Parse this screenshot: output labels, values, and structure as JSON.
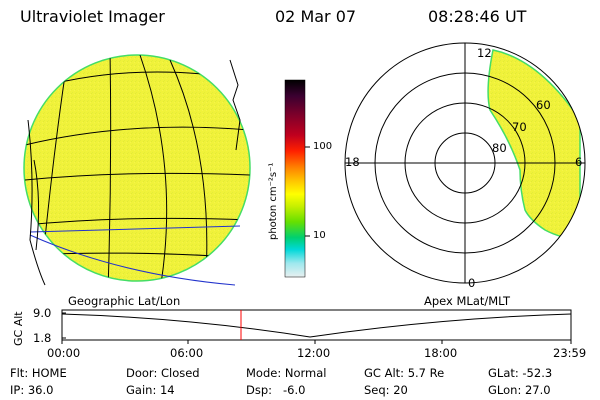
{
  "header": {
    "instrument": "Ultraviolet Imager",
    "date": "02 Mar 07",
    "time": "08:28:46 UT"
  },
  "colorbar": {
    "unit_label": "photon cm⁻²s⁻¹",
    "ticks": [
      "100",
      "10"
    ],
    "colors": [
      "#000000",
      "#3a0030",
      "#80002a",
      "#c0001e",
      "#ff2000",
      "#ff8800",
      "#ffcc00",
      "#ffff00",
      "#c8f000",
      "#66e000",
      "#00d070",
      "#00d8d8",
      "#9ee8ee",
      "#e8f0f0"
    ]
  },
  "left_map": {
    "label": "Geographic Lat/Lon",
    "fill_color": "#f0f23a",
    "edge_color": "#44dd66"
  },
  "polar_map": {
    "label": "Apex MLat/MLT",
    "mlt_labels": {
      "top": "12",
      "left": "18",
      "right": "6",
      "bottom": "0"
    },
    "lat_labels": [
      "60",
      "70",
      "80"
    ]
  },
  "timeline": {
    "ylabel": "GC Alt",
    "y_ticks": [
      "9.0",
      "1.8"
    ],
    "x_ticks": [
      "00:00",
      "06:00",
      "12:00",
      "18:00",
      "23:59"
    ],
    "marker_color": "#ff0000"
  },
  "status": {
    "flt": "Flt: HOME",
    "ip": "IP: 36.0",
    "door": "Door: Closed",
    "gain": "Gain: 14",
    "mode": "Mode: Normal",
    "dsp": "Dsp:   -6.0",
    "gc_alt": "GC Alt: 5.7 Re",
    "seq": "Seq: 20",
    "glat": "GLat: -52.3",
    "glon": "GLon: 27.0"
  }
}
